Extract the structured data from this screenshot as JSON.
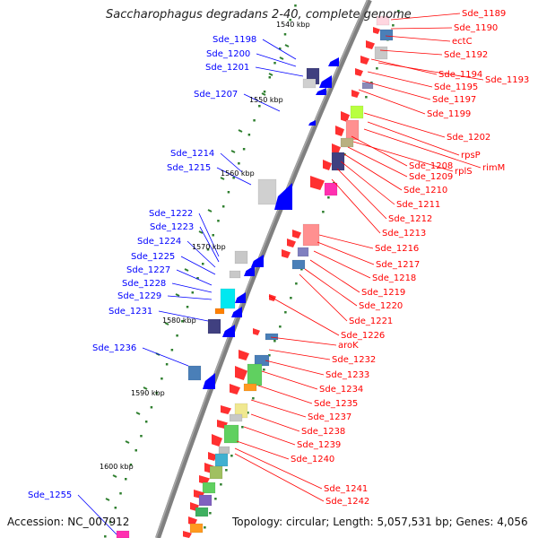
{
  "title": "Saccharophagus degradans 2-40, complete genome",
  "footer": {
    "accession": "Accession: NC_007912",
    "info": "Topology: circular; Length: 5,057,531 bp; Genes: 4,056"
  },
  "colors": {
    "reverse_label": "#0000ff",
    "forward_label": "#ff0000",
    "backbone": "#808080",
    "tick": "#2f7f2f"
  },
  "kbp_markers": [
    "1540 kbp",
    "1550 kbp",
    "1560 kbp",
    "1570 kbp",
    "1580 kbp",
    "1590 kbp",
    "1600 kbp"
  ],
  "reverse_labels": [
    "Sde_1198",
    "Sde_1200",
    "Sde_1201",
    "Sde_1207",
    "Sde_1214",
    "Sde_1215",
    "Sde_1222",
    "Sde_1223",
    "Sde_1224",
    "Sde_1225",
    "Sde_1227",
    "Sde_1228",
    "Sde_1229",
    "Sde_1231",
    "Sde_1236",
    "Sde_1255"
  ],
  "forward_labels": [
    "Sde_1189",
    "Sde_1190",
    "ectC",
    "Sde_1192",
    "Sde_1194",
    "Sde_1193",
    "Sde_1195",
    "Sde_1197",
    "Sde_1199",
    "Sde_1202",
    "rpsP",
    "rimM",
    "Sde_1208",
    "rplS",
    "Sde_1209",
    "Sde_1210",
    "Sde_1211",
    "Sde_1212",
    "Sde_1213",
    "Sde_1216",
    "Sde_1217",
    "Sde_1218",
    "Sde_1219",
    "Sde_1220",
    "Sde_1221",
    "Sde_1226",
    "aroK",
    "Sde_1232",
    "Sde_1233",
    "Sde_1234",
    "Sde_1235",
    "Sde_1237",
    "Sde_1238",
    "Sde_1239",
    "Sde_1240",
    "Sde_1241",
    "Sde_1242"
  ]
}
